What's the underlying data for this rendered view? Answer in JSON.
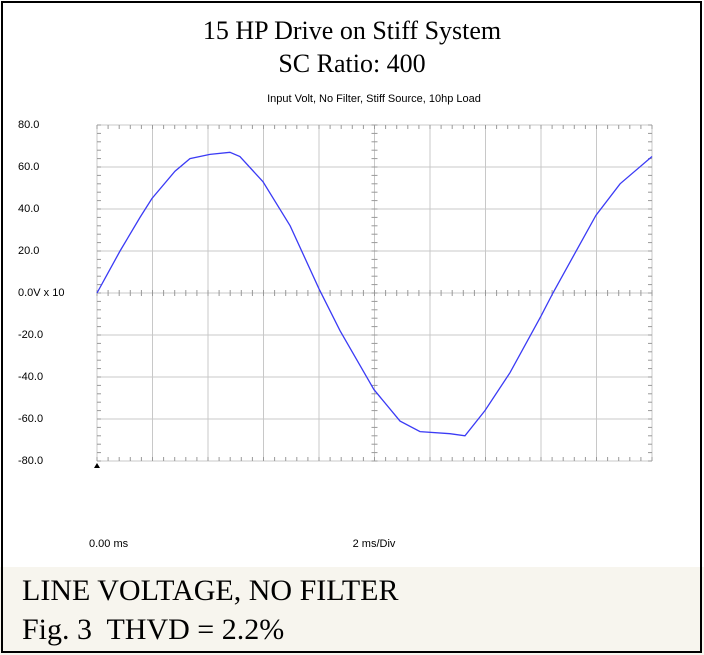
{
  "chart_data": {
    "type": "line",
    "title": "15 HP Drive on Stiff System",
    "subtitle": "SC Ratio: 400",
    "plot_title": "Input Volt, No Filter, Stiff Source, 10hp Load",
    "x_label": "2 ms/Div",
    "caption": [
      "LINE VOLTAGE, NO FILTER",
      "Fig. 3  THVD = 2.2%"
    ],
    "x": [
      0,
      0.29,
      0.83,
      1.55,
      1.98,
      2.81,
      3.35,
      4.07,
      4.79,
      5.15,
      5.98,
      6.96,
      8.0,
      8.76,
      9.98,
      10.92,
      11.64,
      12.72,
      13.26,
      13.98,
      14.88,
      16.0,
      16.43,
      17.98,
      18.85,
      20.0
    ],
    "series": [
      {
        "name": "Input Volt",
        "color": "#3b3bf5",
        "values": [
          0,
          7,
          20,
          36,
          45,
          58,
          64,
          66,
          67,
          65,
          53,
          32,
          2,
          -18,
          -46,
          -61,
          -66,
          -67,
          -68,
          -56,
          -38,
          -11,
          0,
          37,
          52,
          65
        ]
      }
    ],
    "xlim": [
      0,
      20
    ],
    "xticks": [
      {
        "value": 0,
        "label": "0.00 ms"
      }
    ],
    "ylim": [
      -80,
      80
    ],
    "yticks": [
      {
        "value": 80,
        "label": "80.0"
      },
      {
        "value": 60,
        "label": "60.0"
      },
      {
        "value": 40,
        "label": "40.0"
      },
      {
        "value": 20,
        "label": "20.0"
      },
      {
        "value": 0,
        "label": "0.0V x 10"
      },
      {
        "value": -20,
        "label": "-20.0"
      },
      {
        "value": -40,
        "label": "-40.0"
      },
      {
        "value": -60,
        "label": "-60.0"
      },
      {
        "value": -80,
        "label": "-80.0"
      }
    ],
    "grid": true
  }
}
